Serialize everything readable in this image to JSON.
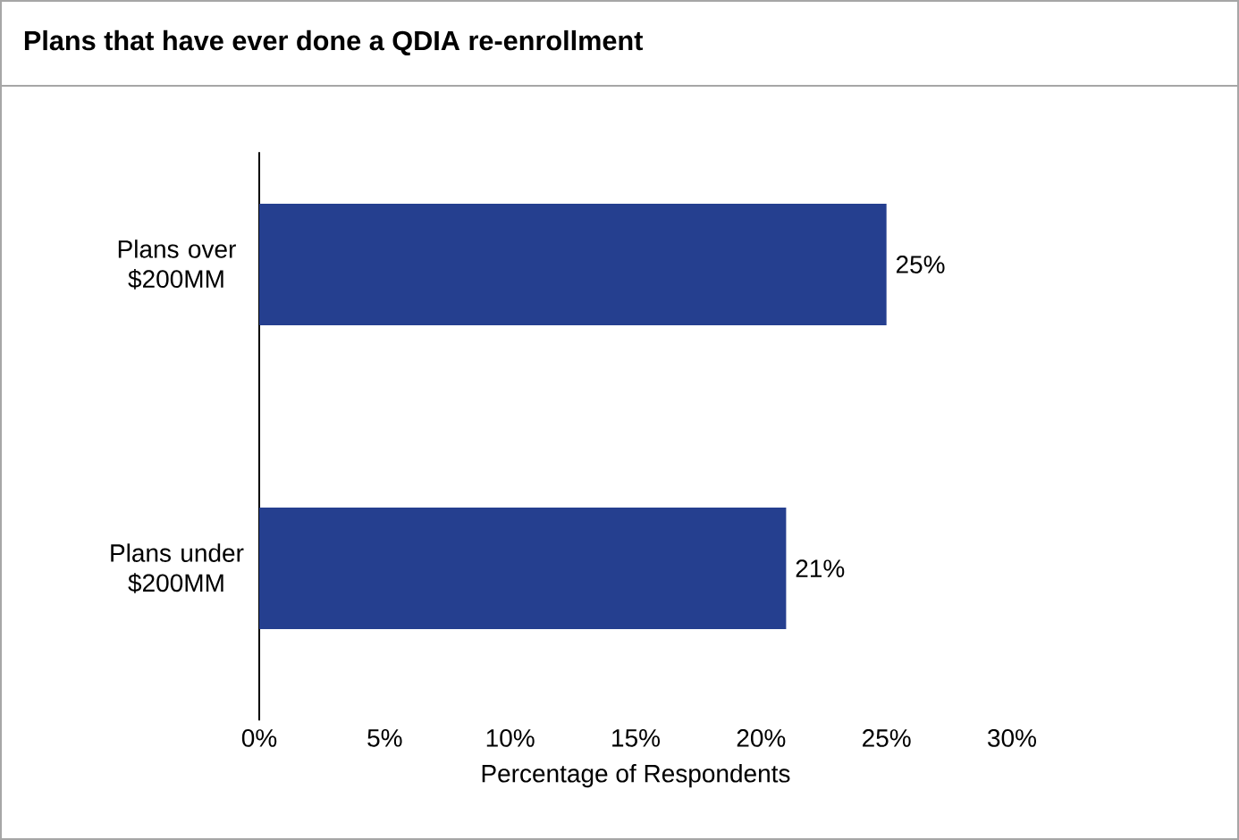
{
  "chart_data": {
    "type": "bar",
    "orientation": "horizontal",
    "title": "Plans that have ever done a QDIA re-enrollment",
    "categories": [
      "Plans over $200MM",
      "Plans under $200MM"
    ],
    "values": [
      25,
      21
    ],
    "color": "#253f8f",
    "value_labels": [
      "25%",
      "21%"
    ],
    "xlabel": "Percentage of Respondents",
    "xlim": [
      0,
      30
    ],
    "xticks": [
      {
        "value": 0,
        "label": "0%"
      },
      {
        "value": 5,
        "label": "5%"
      },
      {
        "value": 10,
        "label": "10%"
      },
      {
        "value": 15,
        "label": "15%"
      },
      {
        "value": 20,
        "label": "20%"
      },
      {
        "value": 25,
        "label": "25%"
      },
      {
        "value": 30,
        "label": "30%"
      }
    ]
  }
}
